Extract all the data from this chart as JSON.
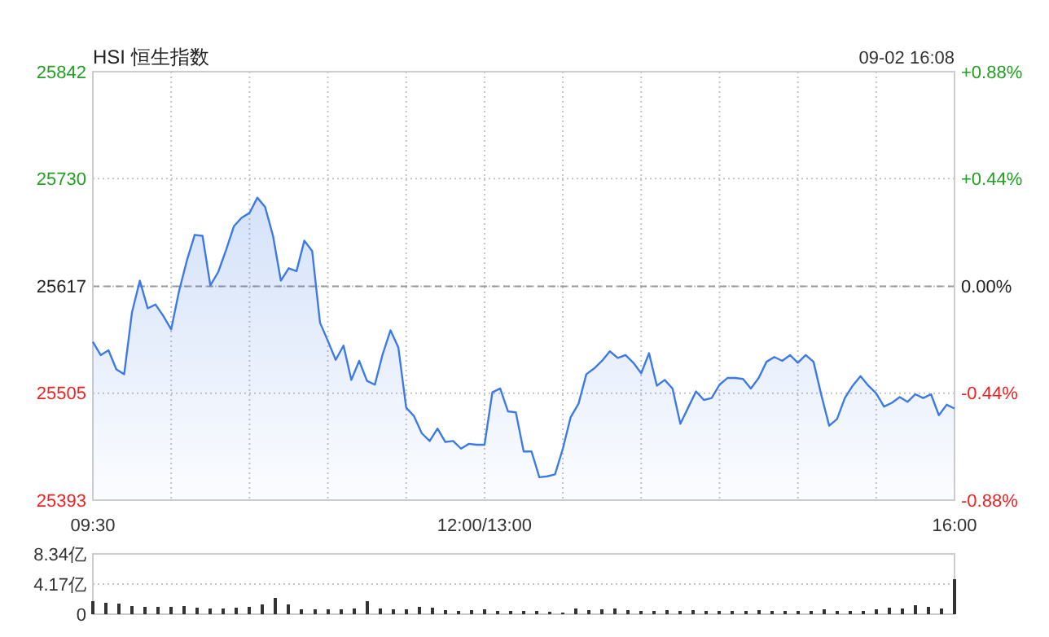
{
  "chart_data": [
    {
      "type": "area",
      "title": "HSI 恒生指数",
      "annotations": [
        "09-02 16:08"
      ],
      "categories": [
        "09:30",
        null,
        null,
        null,
        null,
        null,
        null,
        null,
        null,
        null,
        null,
        null,
        null,
        null,
        null,
        null,
        null,
        null,
        null,
        null,
        null,
        null,
        null,
        null,
        null,
        null,
        null,
        null,
        null,
        null,
        null,
        null,
        null,
        null,
        null,
        null,
        null,
        null,
        null,
        null,
        null,
        null,
        null,
        null,
        null,
        null,
        null,
        null,
        null,
        null,
        "12:00/13:00",
        null,
        null,
        null,
        null,
        null,
        null,
        null,
        null,
        null,
        null,
        null,
        null,
        null,
        null,
        null,
        null,
        null,
        null,
        null,
        null,
        null,
        null,
        null,
        null,
        null,
        null,
        null,
        null,
        null,
        null,
        null,
        null,
        null,
        null,
        null,
        null,
        null,
        null,
        null,
        null,
        null,
        null,
        null,
        null,
        null,
        null,
        null,
        null,
        null,
        null,
        null,
        null,
        null,
        null,
        null,
        null,
        null,
        null,
        null,
        "16:00"
      ],
      "ylim": [
        25393,
        25842
      ],
      "yticks": [
        25393,
        25505,
        25617,
        25730,
        25842
      ],
      "y2lim": [
        -0.88,
        0.88
      ],
      "y2ticks": [
        {
          "value": -0.88,
          "label": "-0.88%"
        },
        {
          "value": -0.44,
          "label": "-0.44%"
        },
        {
          "value": 0,
          "label": "0.00%"
        },
        {
          "value": 0.44,
          "label": "+0.44%"
        },
        {
          "value": 0.88,
          "label": "+0.88%"
        }
      ],
      "grid": true,
      "ref_lines": [
        {
          "axis": "y",
          "value": 25617
        }
      ],
      "series": [
        {
          "color": "#3d7ae6",
          "values": [
            25559,
            25545,
            25550,
            25530,
            25525,
            25590,
            25623,
            25594,
            25598,
            25586,
            25572,
            25612,
            25644,
            25671,
            25670,
            25618,
            25632,
            25655,
            25680,
            25689,
            25694,
            25710,
            25700,
            25670,
            25623,
            25636,
            25633,
            25665,
            25654,
            25579,
            25560,
            25540,
            25555,
            25519,
            25539,
            25518,
            25514,
            25546,
            25571,
            25553,
            25490,
            25481,
            25463,
            25455,
            25468,
            25454,
            25455,
            25447,
            25452,
            25451,
            25451,
            25506,
            25510,
            25486,
            25485,
            25444,
            25444,
            25417,
            25418,
            25420,
            25447,
            25480,
            25494,
            25525,
            25531,
            25539,
            25549,
            25542,
            25545,
            25537,
            25526,
            25547,
            25513,
            25519,
            25510,
            25473,
            25490,
            25507,
            25498,
            25500,
            25514,
            25521,
            25521,
            25520,
            25510,
            25521,
            25538,
            25543,
            25539,
            25545,
            25537,
            25545,
            25538,
            25503,
            25471,
            25478,
            25500,
            25513,
            25523,
            25513,
            25505,
            25491,
            25495,
            25501,
            25496,
            25504,
            25500,
            25504,
            25482,
            25493,
            25489
          ]
        }
      ]
    },
    {
      "type": "bar",
      "categories": [
        null,
        null,
        null,
        null,
        null,
        null,
        null,
        null,
        null,
        null,
        null,
        null,
        null,
        null,
        null,
        null,
        null,
        null,
        null,
        null,
        null,
        null,
        null,
        null,
        null,
        null,
        null,
        null,
        null,
        null,
        null,
        null,
        null,
        null,
        null,
        null,
        null,
        null,
        null,
        null,
        null,
        null,
        null,
        null,
        null,
        null,
        null,
        null,
        null,
        null,
        null,
        null,
        null,
        null,
        null,
        null,
        null,
        null,
        null,
        null,
        null,
        null,
        null,
        null,
        null,
        null,
        null
      ],
      "ylim": [
        0,
        8.34
      ],
      "yticks": [
        0,
        {
          "value": 4.17,
          "label": "4.17亿"
        },
        {
          "value": 8.34,
          "label": "8.34亿"
        }
      ],
      "grid": "y",
      "tick_labels": "y",
      "series": [
        {
          "color": "#333333",
          "values": [
            1.8,
            1.6,
            1.5,
            1.1,
            1.0,
            1.0,
            1.0,
            1.1,
            0.9,
            0.8,
            0.8,
            0.9,
            1.0,
            1.4,
            2.3,
            1.3,
            0.7,
            0.7,
            0.7,
            0.7,
            0.8,
            1.8,
            0.8,
            0.7,
            0.7,
            1.0,
            0.9,
            0.6,
            0.5,
            0.6,
            0.7,
            0.5,
            0.4,
            0.4,
            0.4,
            0.3,
            0.2,
            0.8,
            0.6,
            0.7,
            0.8,
            0.6,
            0.5,
            0.5,
            0.6,
            0.5,
            0.6,
            0.5,
            0.4,
            0.4,
            0.5,
            0.6,
            0.5,
            0.4,
            0.5,
            0.5,
            0.7,
            0.4,
            0.5,
            0.5,
            0.7,
            0.9,
            0.8,
            1.2,
            1.0,
            0.8,
            4.8
          ]
        }
      ]
    }
  ]
}
